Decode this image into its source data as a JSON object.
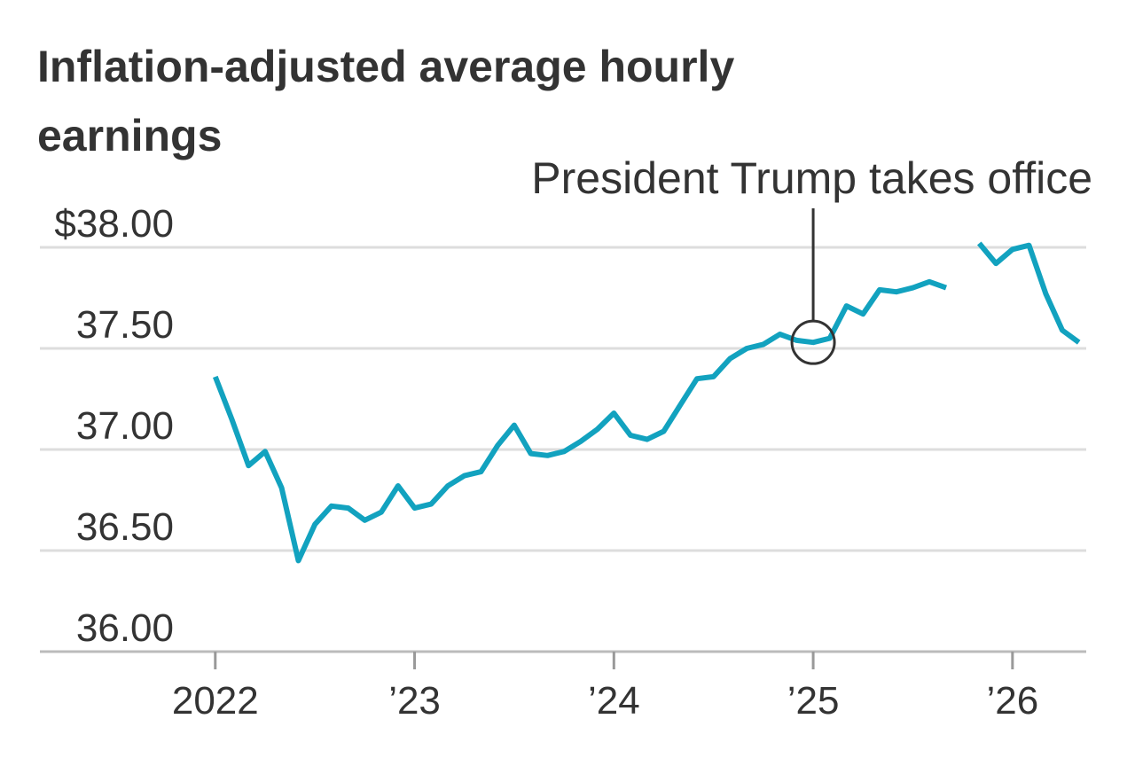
{
  "chart_data": {
    "type": "line",
    "title": "Inflation-adjusted average hourly earnings",
    "annotation": {
      "text": "President Trump takes office",
      "x": 2025
    },
    "x": [
      2022,
      2022.083,
      2022.167,
      2022.25,
      2022.333,
      2022.417,
      2022.5,
      2022.583,
      2022.667,
      2022.75,
      2022.833,
      2022.917,
      2023,
      2023.083,
      2023.167,
      2023.25,
      2023.333,
      2023.417,
      2023.5,
      2023.583,
      2023.667,
      2023.75,
      2023.833,
      2023.917,
      2024,
      2024.083,
      2024.167,
      2024.25,
      2024.333,
      2024.417,
      2024.5,
      2024.583,
      2024.667,
      2024.75,
      2024.833,
      2024.917,
      2025,
      2025.083,
      2025.167,
      2025.25,
      2025.333,
      2025.417,
      2025.5,
      2025.583,
      2025.667,
      2025.75,
      2025.833,
      2025.917,
      2026,
      2026.083,
      2026.167,
      2026.25,
      2026.333
    ],
    "values": [
      37.36,
      37.15,
      36.92,
      36.99,
      36.81,
      36.45,
      36.63,
      36.72,
      36.71,
      36.65,
      36.69,
      36.82,
      36.71,
      36.73,
      36.82,
      36.87,
      36.89,
      37.02,
      37.12,
      36.98,
      36.97,
      36.99,
      37.04,
      37.1,
      37.18,
      37.07,
      37.05,
      37.09,
      37.22,
      37.35,
      37.36,
      37.45,
      37.5,
      37.52,
      37.57,
      37.54,
      37.53,
      37.55,
      37.71,
      37.67,
      37.79,
      37.78,
      37.8,
      37.83,
      37.8,
      null,
      38.02,
      37.92,
      37.99,
      38.01,
      37.77,
      37.59,
      37.53
    ],
    "color": "#12a2bf",
    "xlim": [
      2021.12,
      2026.37
    ],
    "xticks": [
      {
        "value": 2022,
        "label": "2022"
      },
      {
        "value": 2023,
        "label": "’23"
      },
      {
        "value": 2024,
        "label": "’24"
      },
      {
        "value": 2025,
        "label": "’25"
      },
      {
        "value": 2026,
        "label": "’26"
      }
    ],
    "ylim": [
      36,
      38
    ],
    "yticks": [
      {
        "value": 36,
        "label": "36.00"
      },
      {
        "value": 36.5,
        "label": "36.50"
      },
      {
        "value": 37,
        "label": "37.00"
      },
      {
        "value": 37.5,
        "label": "37.50"
      },
      {
        "value": 38,
        "label": "$38.00"
      }
    ],
    "grid": true
  }
}
